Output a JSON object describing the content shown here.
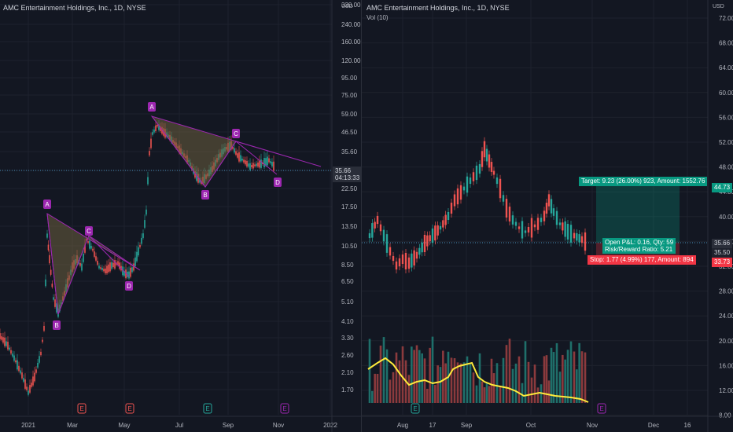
{
  "left_chart": {
    "title": "AMC Entertainment Holdings, Inc., 1D, NYSE",
    "currency": "USD",
    "price_axis": [
      "320.00",
      "240.00",
      "160.00",
      "120.00",
      "95.00",
      "75.00",
      "59.00",
      "46.50",
      "35.60",
      "28.50",
      "22.50",
      "17.50",
      "13.50",
      "10.50",
      "8.50",
      "6.50",
      "5.10",
      "4.10",
      "3.30",
      "2.60",
      "2.10",
      "1.70"
    ],
    "time_axis": [
      "2021",
      "Mar",
      "May",
      "Jul",
      "Sep",
      "Nov",
      "2022"
    ],
    "last_price": "35.66",
    "countdown": "04:13:33",
    "pattern1_labels": [
      "A",
      "B",
      "C",
      "D"
    ],
    "pattern2_labels": [
      "A",
      "B",
      "C",
      "D"
    ],
    "event_markers": [
      "E",
      "E",
      "E",
      "E"
    ],
    "colors": {
      "up": "#26a69a",
      "down": "#ef5350",
      "pattern": "#9c27b0",
      "triangle_fill": "#6b5e3e"
    }
  },
  "right_chart": {
    "title": "AMC Entertainment Holdings, Inc., 1D, NYSE",
    "indicator": "Vol (10)",
    "currency": "USD",
    "price_axis": [
      "72.00",
      "68.00",
      "64.00",
      "60.00",
      "56.00",
      "52.00",
      "48.00",
      "44.00",
      "40.00",
      "36.00",
      "32.00",
      "28.00",
      "24.00",
      "20.00",
      "16.00",
      "12.00",
      "8.00"
    ],
    "time_axis": [
      "Aug",
      "17",
      "Sep",
      "Oct",
      "Nov",
      "Dec",
      "16"
    ],
    "target_label": "Target: 9.23 (26.00%) 923, Amount: 1552.76",
    "target_price": "44.73",
    "current_price": "35.66",
    "entry_price": "35.50",
    "stop_price": "33.73",
    "pnl_label": "Open P&L: 0.16, Qty: 59",
    "rr_label": "Risk/Reward Ratio: 5.21",
    "stop_label": "Stop: 1.77 (4.99%) 177, Amount: 894",
    "event_markers": [
      "E",
      "E"
    ],
    "colors": {
      "target": "#089981",
      "stop": "#f23645",
      "volume_ma": "#ffeb3b"
    }
  }
}
